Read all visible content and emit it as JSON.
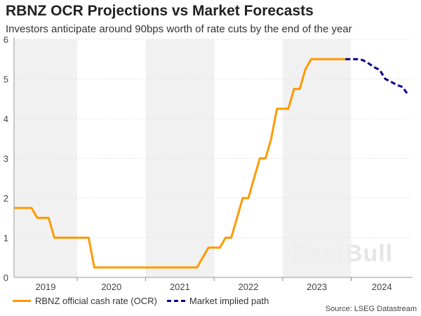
{
  "chart_data": {
    "type": "line",
    "title": "RBNZ OCR Projections vs Market Forecasts",
    "subtitle": "Investors anticipate around 90bps worth of rate cuts by the end of the year",
    "xlabel": "",
    "ylabel": "",
    "ylim": [
      0,
      6
    ],
    "yticks": [
      "0",
      "1",
      "2",
      "3",
      "4",
      "5",
      "6"
    ],
    "xticks": [
      "2019",
      "2020",
      "2021",
      "2022",
      "2023",
      "2024"
    ],
    "grid": true,
    "legend": "bottom",
    "series": [
      {
        "name": "RBNZ official cash rate (OCR)",
        "color": "#ff9900",
        "style": "solid",
        "x": [
          "2019-02",
          "2019-03",
          "2019-04",
          "2019-05",
          "2019-06",
          "2019-07",
          "2019-08",
          "2019-09",
          "2019-10",
          "2019-11",
          "2019-12",
          "2020-01",
          "2020-02",
          "2020-03",
          "2020-04",
          "2020-05",
          "2020-06",
          "2020-07",
          "2020-08",
          "2020-09",
          "2020-10",
          "2020-11",
          "2020-12",
          "2021-01",
          "2021-02",
          "2021-03",
          "2021-04",
          "2021-05",
          "2021-06",
          "2021-07",
          "2021-08",
          "2021-09",
          "2021-10",
          "2021-11",
          "2021-12",
          "2022-01",
          "2022-02",
          "2022-03",
          "2022-04",
          "2022-05",
          "2022-06",
          "2022-07",
          "2022-08",
          "2022-09",
          "2022-10",
          "2022-11",
          "2022-12",
          "2023-01",
          "2023-02",
          "2023-03",
          "2023-04",
          "2023-05",
          "2023-06",
          "2023-07",
          "2023-08",
          "2023-09",
          "2023-10",
          "2023-11",
          "2023-12"
        ],
        "values": [
          1.75,
          1.75,
          1.75,
          1.75,
          1.5,
          1.5,
          1.5,
          1.0,
          1.0,
          1.0,
          1.0,
          1.0,
          1.0,
          1.0,
          0.25,
          0.25,
          0.25,
          0.25,
          0.25,
          0.25,
          0.25,
          0.25,
          0.25,
          0.25,
          0.25,
          0.25,
          0.25,
          0.25,
          0.25,
          0.25,
          0.25,
          0.25,
          0.25,
          0.5,
          0.75,
          0.75,
          0.75,
          1.0,
          1.0,
          1.5,
          2.0,
          2.0,
          2.5,
          3.0,
          3.0,
          3.5,
          4.25,
          4.25,
          4.25,
          4.75,
          4.75,
          5.25,
          5.5,
          5.5,
          5.5,
          5.5,
          5.5,
          5.5,
          5.5
        ]
      },
      {
        "name": "Market implied path",
        "color": "#00008b",
        "style": "dashed",
        "x": [
          "2023-12",
          "2024-01",
          "2024-02",
          "2024-03",
          "2024-04",
          "2024-05",
          "2024-06",
          "2024-07",
          "2024-08",
          "2024-09",
          "2024-10",
          "2024-11"
        ],
        "values": [
          5.5,
          5.5,
          5.5,
          5.48,
          5.4,
          5.3,
          5.23,
          5.0,
          4.93,
          4.85,
          4.8,
          4.6
        ]
      }
    ]
  },
  "source": "Source: LSEG Datastream",
  "watermark": "FastBull"
}
